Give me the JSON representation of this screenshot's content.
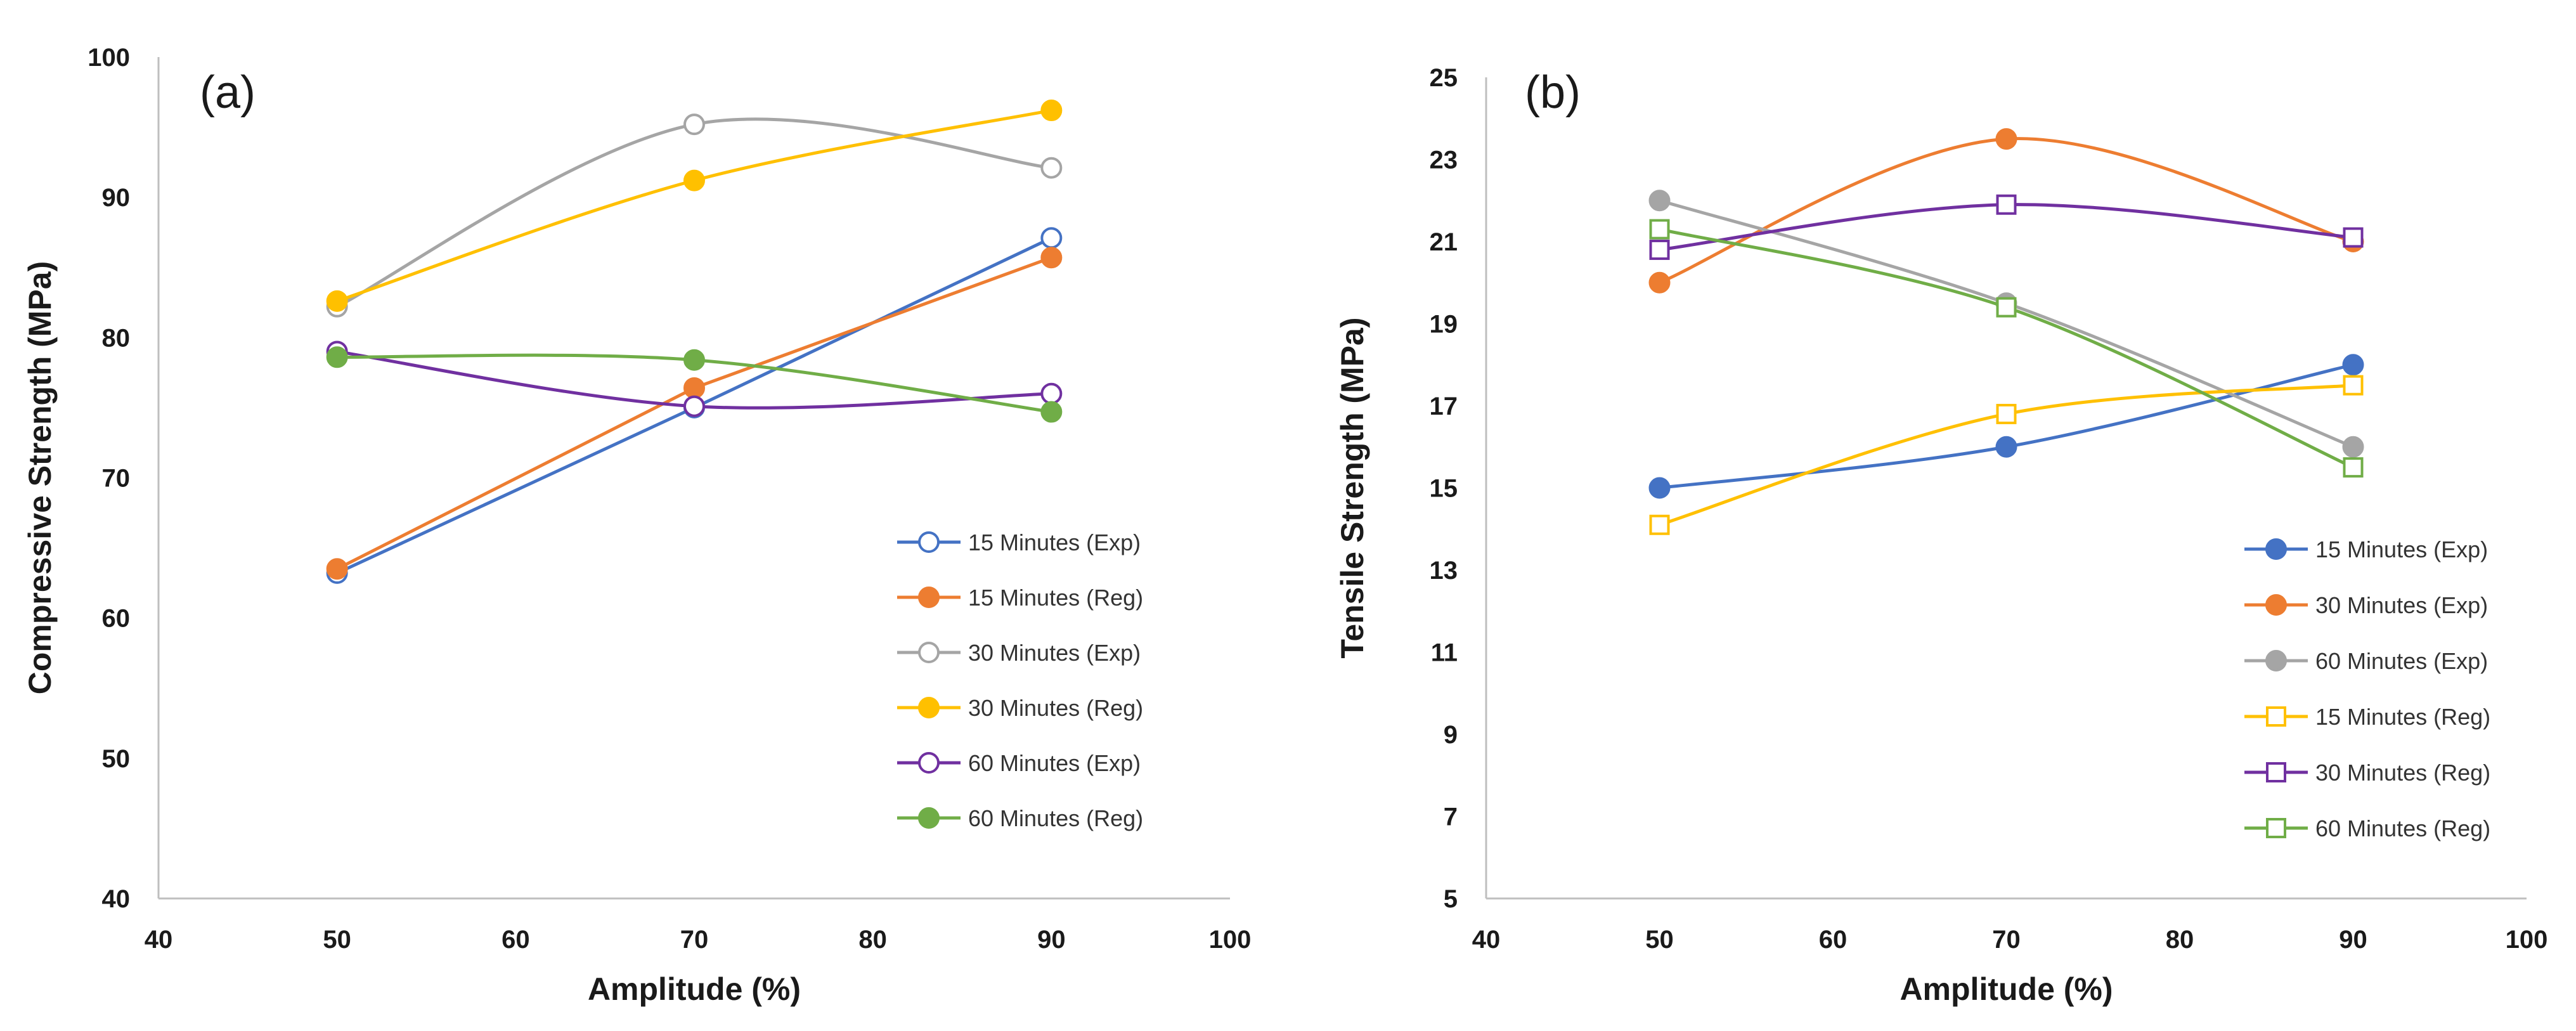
{
  "chart_data": [
    {
      "type": "line",
      "panel_label": "(a)",
      "xlabel": "Amplitude (%)",
      "ylabel": "Compressive Strength (MPa)",
      "xlim": [
        40,
        100
      ],
      "ylim": [
        40,
        100
      ],
      "xticks": [
        40,
        50,
        60,
        70,
        80,
        90,
        100
      ],
      "yticks": [
        40,
        50,
        60,
        70,
        80,
        90,
        100
      ],
      "grid": false,
      "legend_position": "bottom-right",
      "x": [
        50,
        70,
        90
      ],
      "series": [
        {
          "name": "15 Minutes (Exp)",
          "values": [
            63.2,
            75.0,
            87.1
          ],
          "color": "#4472C4",
          "marker": "circle-open",
          "smooth": false
        },
        {
          "name": "15 Minutes (Reg)",
          "values": [
            63.5,
            76.4,
            85.7
          ],
          "color": "#ED7D31",
          "marker": "circle-filled",
          "smooth": false
        },
        {
          "name": "30 Minutes (Exp)",
          "values": [
            82.2,
            95.2,
            92.1
          ],
          "color": "#A5A5A5",
          "marker": "circle-open",
          "smooth": true
        },
        {
          "name": "30 Minutes (Reg)",
          "values": [
            82.6,
            91.2,
            96.2
          ],
          "color": "#FFC000",
          "marker": "circle-filled",
          "smooth": true
        },
        {
          "name": "60 Minutes (Exp)",
          "values": [
            79.0,
            75.1,
            76.0
          ],
          "color": "#7030A0",
          "marker": "circle-open",
          "smooth": true
        },
        {
          "name": "60 Minutes (Reg)",
          "values": [
            78.6,
            78.4,
            74.7
          ],
          "color": "#70AD47",
          "marker": "circle-filled",
          "smooth": true
        }
      ]
    },
    {
      "type": "line",
      "panel_label": "(b)",
      "xlabel": "Amplitude (%)",
      "ylabel": "Tensile Strength (MPa)",
      "xlim": [
        40,
        100
      ],
      "ylim": [
        5,
        25
      ],
      "xticks": [
        40,
        50,
        60,
        70,
        80,
        90,
        100
      ],
      "yticks": [
        5,
        7,
        9,
        11,
        13,
        15,
        17,
        19,
        21,
        23,
        25
      ],
      "grid": false,
      "legend_position": "bottom-right",
      "x": [
        50,
        70,
        90
      ],
      "series": [
        {
          "name": "15 Minutes (Exp)",
          "values": [
            15.0,
            16.0,
            18.0
          ],
          "color": "#4472C4",
          "marker": "circle-filled",
          "smooth": true
        },
        {
          "name": "30 Minutes (Exp)",
          "values": [
            20.0,
            23.5,
            21.0
          ],
          "color": "#ED7D31",
          "marker": "circle-filled",
          "smooth": true
        },
        {
          "name": "60 Minutes (Exp)",
          "values": [
            22.0,
            19.5,
            16.0
          ],
          "color": "#A5A5A5",
          "marker": "circle-filled",
          "smooth": true
        },
        {
          "name": "15 Minutes (Reg)",
          "values": [
            14.1,
            16.8,
            17.5
          ],
          "color": "#FFC000",
          "marker": "square-open",
          "smooth": true
        },
        {
          "name": "30 Minutes (Reg)",
          "values": [
            20.8,
            21.9,
            21.1
          ],
          "color": "#7030A0",
          "marker": "square-open",
          "smooth": true
        },
        {
          "name": "60 Minutes (Reg)",
          "values": [
            21.3,
            19.4,
            15.5
          ],
          "color": "#70AD47",
          "marker": "square-open",
          "smooth": true
        }
      ]
    }
  ]
}
